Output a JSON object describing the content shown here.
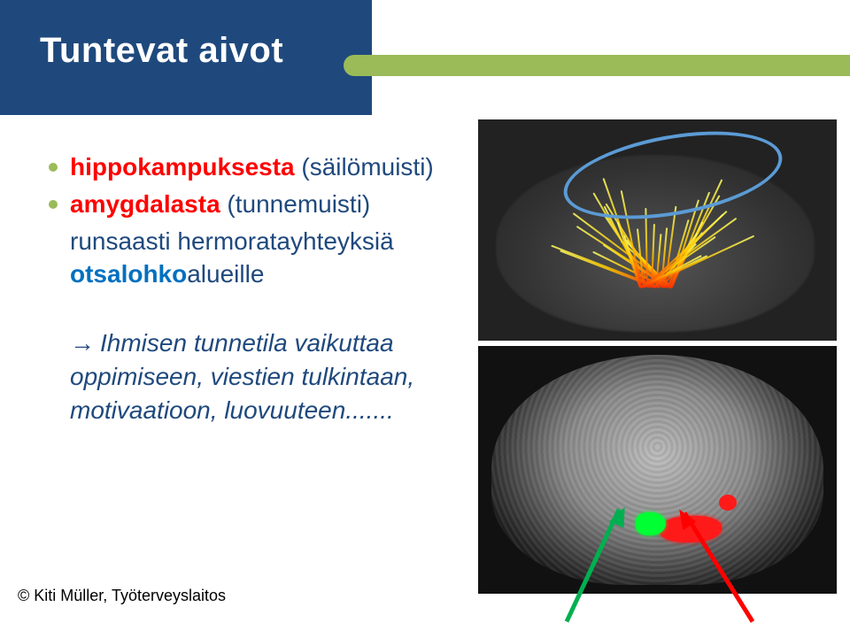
{
  "title": "Tuntevat aivot",
  "bullets": [
    {
      "parts": [
        {
          "text": "hippokampuksesta ",
          "color": "#ff0000",
          "weight": "bold"
        },
        {
          "text": "(säilömuisti)",
          "color": "#1f497d",
          "weight": "normal"
        }
      ]
    },
    {
      "parts": [
        {
          "text": "amygdalasta ",
          "color": "#ff0000",
          "weight": "bold"
        },
        {
          "text": "(tunnemuisti)",
          "color": "#1f497d",
          "weight": "normal"
        }
      ],
      "continuation": [
        {
          "text": "runsaasti hermoratayhteyksiä",
          "color": "#1f497d",
          "weight": "normal"
        }
      ],
      "continuation2": [
        {
          "text": "otsalohko",
          "color": "#0070c0",
          "weight": "bold",
          "italic": false
        },
        {
          "text": "alueille",
          "color": "#1f497d",
          "weight": "normal"
        }
      ]
    }
  ],
  "arrow_par": {
    "arrow": "→",
    "lines": [
      [
        {
          "text": "Ihmisen tunnetila vaikuttaa",
          "color": "#1f497d",
          "italic": true
        }
      ],
      [
        {
          "text": "oppimiseen, viestien tulkintaan,",
          "color": "#1f497d",
          "italic": true
        }
      ],
      [
        {
          "text": "motivaatioon, luovuuteen.......",
          "color": "#1f497d",
          "italic": true
        }
      ]
    ]
  },
  "footer": "© Kiti Müller, Työterveyslaitos",
  "colors": {
    "blue_block": "#1f497d",
    "olive": "#9bbb59",
    "ellipse": "#5b9bd5",
    "green_arrow": "#00b050",
    "red_arrow": "#ff0000"
  },
  "figures": {
    "top": {
      "type": "brain-tractography-illustration",
      "annotation": "blue-ellipse-over-top-fibers"
    },
    "bottom": {
      "type": "sagittal-mri-with-roi",
      "rois": [
        "green-hippocampus",
        "red-amygdala"
      ],
      "pointers": [
        "green-arrow-from-bottom-left",
        "red-arrow-from-bottom-right"
      ]
    }
  }
}
